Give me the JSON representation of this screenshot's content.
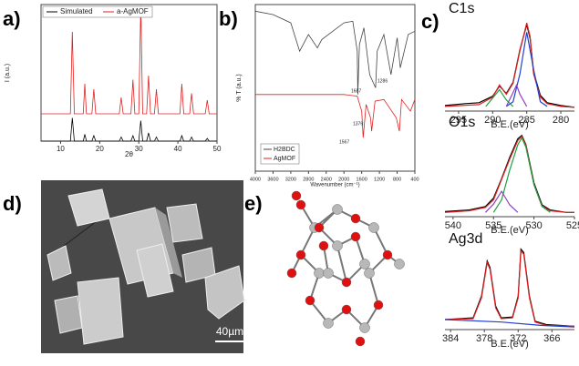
{
  "panel_labels": [
    "a)",
    "b)",
    "c)",
    "d)",
    "e)"
  ],
  "images": {
    "scale_bar": "40µm"
  },
  "chart_data": [
    {
      "type": "line",
      "x_label": "2θ",
      "y_label": "I (a.u.)",
      "xlim": [
        5,
        50
      ],
      "ylim": [
        0,
        100
      ],
      "xticks": [
        10,
        20,
        30,
        40,
        50
      ],
      "legend": "upper left",
      "series": [
        {
          "name": "Simulated",
          "color": "#000000",
          "x": [
            5,
            12.5,
            13,
            13.5,
            15.8,
            16.2,
            16.6,
            18,
            18.5,
            19,
            25,
            25.5,
            26,
            28,
            28.5,
            29,
            30,
            30.5,
            31,
            32,
            32.5,
            33,
            34,
            34.5,
            35,
            40.5,
            41,
            41.5,
            43,
            43.5,
            44,
            47,
            47.5,
            48,
            50
          ],
          "values": [
            0,
            0,
            17,
            0,
            0,
            5,
            0,
            0,
            4,
            0,
            0,
            3,
            0,
            0,
            4,
            0,
            0,
            15,
            0,
            0,
            6,
            0,
            0,
            3,
            0,
            0,
            4,
            0,
            0,
            3,
            0,
            0,
            2,
            0,
            0
          ]
        },
        {
          "name": "a-AgMOF",
          "color": "#e02020",
          "x": [
            5,
            12.5,
            13,
            13.5,
            15.8,
            16.2,
            16.6,
            18,
            18.5,
            19,
            25,
            25.5,
            26,
            28,
            28.5,
            29,
            30,
            30.5,
            31,
            32,
            32.5,
            33,
            34,
            34.5,
            35,
            40.5,
            41,
            41.5,
            43,
            43.5,
            44,
            47,
            47.5,
            48,
            50
          ],
          "values": [
            20,
            20,
            80,
            20,
            20,
            42,
            20,
            20,
            38,
            20,
            20,
            32,
            20,
            20,
            45,
            20,
            20,
            99,
            20,
            20,
            48,
            20,
            20,
            38,
            20,
            20,
            42,
            20,
            20,
            35,
            20,
            20,
            30,
            20,
            20
          ]
        }
      ]
    },
    {
      "type": "line",
      "x_label": "Wavenumber (cm⁻¹)",
      "y_label": "% T (a.u.)",
      "xlim": [
        4000,
        400
      ],
      "ylim": [
        0,
        100
      ],
      "xticks": [
        4000,
        3600,
        3200,
        2800,
        2400,
        2000,
        1600,
        1200,
        800,
        400
      ],
      "legend": "lower left",
      "annotations": [
        "1687",
        "1286",
        "1376",
        "1567"
      ],
      "series": [
        {
          "name": "H2BDC",
          "color": "#444444",
          "x": [
            4000,
            3600,
            3200,
            3000,
            2800,
            2600,
            2500,
            2000,
            1800,
            1700,
            1687,
            1650,
            1550,
            1420,
            1286,
            1250,
            1100,
            940,
            800,
            730,
            550,
            400
          ],
          "values": [
            96,
            94,
            89,
            72,
            82,
            74,
            79,
            89,
            90,
            72,
            46,
            76,
            86,
            58,
            50,
            72,
            82,
            58,
            80,
            62,
            82,
            84
          ]
        },
        {
          "name": "AgMOF",
          "color": "#e02020",
          "x": [
            4000,
            2000,
            1700,
            1600,
            1567,
            1500,
            1400,
            1376,
            1300,
            1100,
            820,
            750,
            700,
            500,
            400
          ],
          "values": [
            46,
            46,
            45,
            36,
            20,
            40,
            32,
            24,
            42,
            43,
            32,
            24,
            43,
            36,
            43
          ]
        }
      ]
    },
    {
      "type": "line",
      "title": "C1s",
      "x_label": "B.E.(eV)",
      "xlim": [
        297,
        278
      ],
      "ylim": [
        0,
        100
      ],
      "xticks": [
        295,
        290,
        285,
        280
      ],
      "series": [
        {
          "color": "#000000",
          "x": [
            297,
            294,
            292,
            290,
            289,
            288,
            287,
            286,
            285,
            284.5,
            284,
            283,
            282,
            280,
            278
          ],
          "values": [
            6,
            8,
            9,
            16,
            27,
            19,
            31,
            66,
            93,
            78,
            42,
            17,
            9,
            6,
            4
          ]
        },
        {
          "color": "#e02020",
          "x": [
            297,
            292,
            290,
            289,
            288,
            287,
            286,
            285,
            284.5,
            284,
            283,
            282,
            280,
            278
          ],
          "values": [
            5,
            7,
            15,
            28,
            18,
            30,
            65,
            95,
            80,
            40,
            15,
            8,
            5,
            4
          ]
        },
        {
          "color": "#2040d0",
          "x": [
            288,
            287,
            286,
            285,
            284,
            283,
            282
          ],
          "values": [
            5,
            10,
            40,
            85,
            45,
            10,
            5
          ]
        },
        {
          "color": "#20a040",
          "x": [
            291,
            290,
            289,
            288,
            287
          ],
          "values": [
            5,
            14,
            23,
            12,
            5
          ]
        },
        {
          "color": "#9040c0",
          "x": [
            288,
            287,
            286.5,
            286,
            285
          ],
          "values": [
            5,
            20,
            28,
            18,
            5
          ]
        }
      ]
    },
    {
      "type": "line",
      "title": "O1s",
      "x_label": "B.E.(eV)",
      "xlim": [
        541,
        525
      ],
      "ylim": [
        0,
        100
      ],
      "xticks": [
        540,
        535,
        530,
        525
      ],
      "series": [
        {
          "color": "#000000",
          "x": [
            541,
            538,
            536,
            535,
            534,
            533,
            532,
            531.5,
            531,
            530,
            529,
            528,
            526,
            525
          ],
          "values": [
            6,
            8,
            12,
            22,
            45,
            70,
            92,
            96,
            85,
            40,
            14,
            8,
            5,
            5
          ]
        },
        {
          "color": "#e02020",
          "x": [
            541,
            538,
            536,
            535,
            534,
            533,
            532,
            531.5,
            531,
            530,
            529,
            528,
            526,
            525
          ],
          "values": [
            5,
            7,
            11,
            20,
            44,
            68,
            90,
            95,
            84,
            38,
            12,
            7,
            5,
            5
          ]
        },
        {
          "color": "#20a040",
          "x": [
            535,
            534,
            533,
            532,
            531.5,
            531,
            530,
            529,
            528
          ],
          "values": [
            5,
            20,
            55,
            85,
            93,
            82,
            38,
            12,
            5
          ]
        },
        {
          "color": "#9040c0",
          "x": [
            536,
            535,
            534,
            533,
            532
          ],
          "values": [
            5,
            15,
            30,
            14,
            5
          ]
        }
      ]
    },
    {
      "type": "line",
      "title": "Ag3d",
      "x_label": "B.E.(eV)",
      "xlim": [
        385,
        362
      ],
      "ylim": [
        0,
        100
      ],
      "xticks": [
        384,
        378,
        372,
        366
      ],
      "series": [
        {
          "color": "#000000",
          "x": [
            385,
            380,
            378.5,
            377.5,
            377,
            376,
            375,
            373,
            372,
            371.5,
            371,
            370,
            369,
            367,
            362
          ],
          "values": [
            12,
            14,
            40,
            82,
            74,
            28,
            14,
            15,
            40,
            96,
            92,
            40,
            10,
            6,
            4
          ]
        },
        {
          "color": "#e02020",
          "x": [
            385,
            380,
            378.5,
            377.5,
            377,
            376,
            375,
            373,
            372,
            371.5,
            371,
            370,
            369,
            367,
            362
          ],
          "values": [
            12,
            13,
            38,
            80,
            72,
            26,
            13,
            14,
            38,
            94,
            90,
            38,
            9,
            5,
            4
          ]
        },
        {
          "color": "#2040d0",
          "x": [
            385,
            375,
            368,
            362
          ],
          "values": [
            12,
            9,
            5,
            3
          ]
        }
      ]
    }
  ]
}
